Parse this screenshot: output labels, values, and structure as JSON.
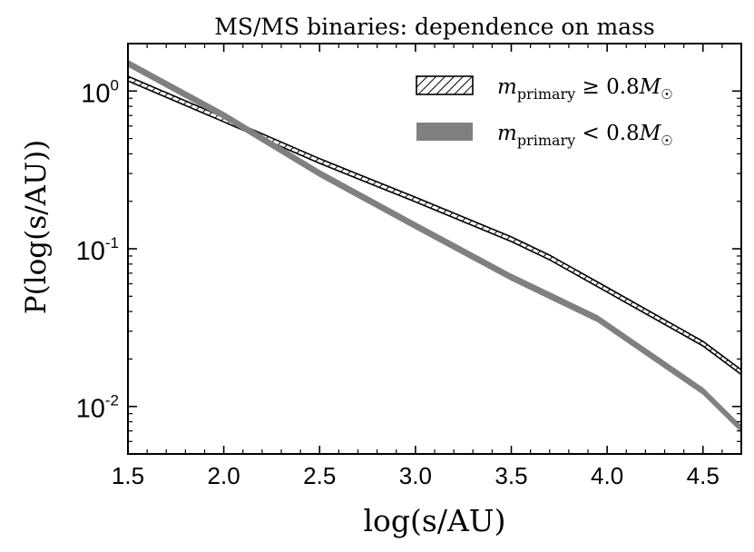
{
  "chart_data": {
    "type": "line",
    "title": "MS/MS binaries: dependence on mass",
    "xlabel": "log(s/AU)",
    "ylabel": "P(log(s/AU))",
    "xlim": [
      1.5,
      4.7
    ],
    "ylim": [
      0.005,
      2.0
    ],
    "yscale": "log",
    "x_ticks": [
      1.5,
      2.0,
      2.5,
      3.0,
      3.5,
      4.0,
      4.5
    ],
    "x_tick_labels": [
      "1.5",
      "2.0",
      "2.5",
      "3.0",
      "3.5",
      "4.0",
      "4.5"
    ],
    "y_ticks": [
      {
        "value": 1,
        "base": "10",
        "exp": "0"
      },
      {
        "value": 0.1,
        "base": "10",
        "exp": "-1"
      },
      {
        "value": 0.01,
        "base": "10",
        "exp": "-2"
      }
    ],
    "legend_position": "top-right",
    "series": [
      {
        "name": "m_primary ≥ 0.8M☉",
        "legend_main": "m",
        "legend_sub": "primary",
        "legend_rel": " ≥ 0.8",
        "legend_M": "M",
        "legend_sun": "☉",
        "style": "hatched",
        "color": "#000000",
        "x": [
          1.5,
          2.0,
          2.5,
          3.0,
          3.5,
          3.7,
          4.0,
          4.5,
          4.7
        ],
        "y": [
          1.2,
          0.66,
          0.36,
          0.205,
          0.115,
          0.088,
          0.055,
          0.025,
          0.0165
        ],
        "band_rel_width": 0.07
      },
      {
        "name": "m_primary < 0.8M☉",
        "legend_main": "m",
        "legend_sub": "primary",
        "legend_rel": " < 0.8",
        "legend_M": "M",
        "legend_sun": "☉",
        "style": "filled",
        "color": "#808080",
        "x": [
          1.5,
          2.0,
          2.5,
          3.0,
          3.5,
          3.95,
          4.5,
          4.7
        ],
        "y": [
          1.5,
          0.7,
          0.3,
          0.14,
          0.066,
          0.036,
          0.0125,
          0.0072
        ],
        "band_rel_width": 0.09
      }
    ]
  }
}
